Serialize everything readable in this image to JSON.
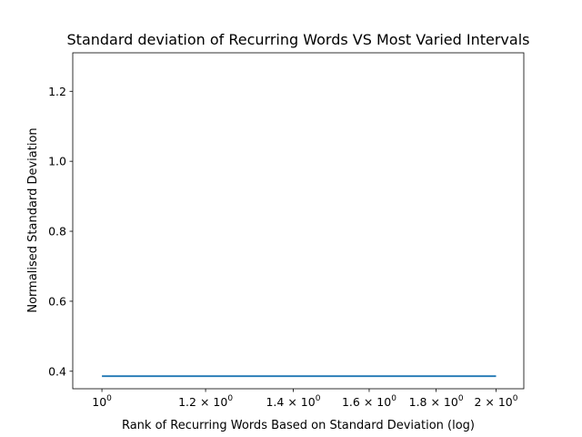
{
  "chart_data": {
    "type": "line",
    "title": "Standard deviation of Recurring Words VS Most Varied Intervals",
    "xlabel": "Rank of Recurring Words Based on Standard Deviation (log)",
    "ylabel": "Normalised Standard Deviation",
    "xscale": "log",
    "xlim": [
      0.95,
      2.1
    ],
    "ylim": [
      0.35,
      1.31
    ],
    "grid": false,
    "x_ticks": [
      {
        "value": 1.0,
        "base": "10",
        "exp": "0"
      },
      {
        "value": 1.2,
        "base": "1.2 × 10",
        "exp": "0"
      },
      {
        "value": 1.4,
        "base": "1.4 × 10",
        "exp": "0"
      },
      {
        "value": 1.6,
        "base": "1.6 × 10",
        "exp": "0"
      },
      {
        "value": 1.8,
        "base": "1.8 × 10",
        "exp": "0"
      },
      {
        "value": 2.0,
        "base": "2 × 10",
        "exp": "0"
      }
    ],
    "y_ticks": [
      {
        "value": 0.4,
        "label": "0.4"
      },
      {
        "value": 0.6,
        "label": "0.6"
      },
      {
        "value": 0.8,
        "label": "0.8"
      },
      {
        "value": 1.0,
        "label": "1.0"
      },
      {
        "value": 1.2,
        "label": "1.2"
      }
    ],
    "series": [
      {
        "color": "#1f77b4",
        "x": [
          1,
          2
        ],
        "values": [
          0.386,
          0.386
        ]
      }
    ]
  }
}
